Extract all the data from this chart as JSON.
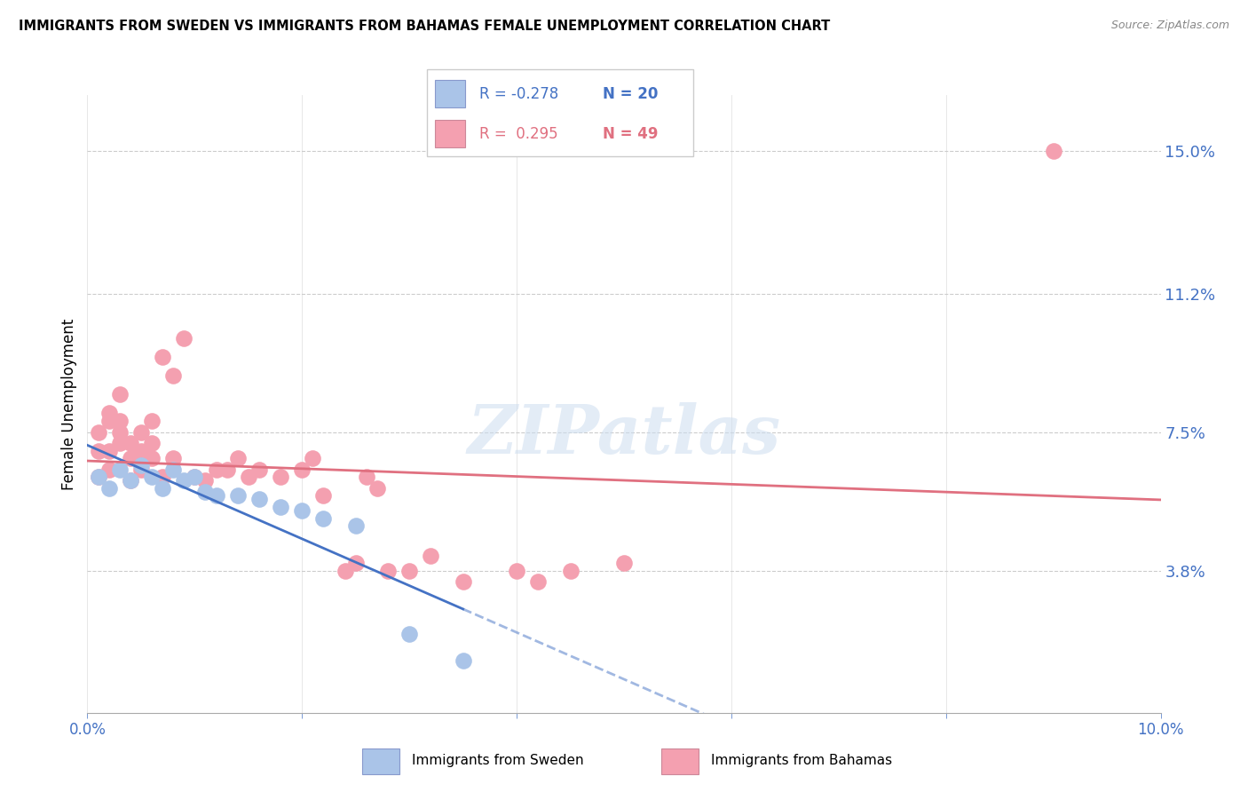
{
  "title": "IMMIGRANTS FROM SWEDEN VS IMMIGRANTS FROM BAHAMAS FEMALE UNEMPLOYMENT CORRELATION CHART",
  "source": "Source: ZipAtlas.com",
  "ylabel": "Female Unemployment",
  "ytick_labels": [
    "15.0%",
    "11.2%",
    "7.5%",
    "3.8%"
  ],
  "ytick_values": [
    0.15,
    0.112,
    0.075,
    0.038
  ],
  "xlim": [
    0.0,
    0.1
  ],
  "ylim": [
    0.0,
    0.165
  ],
  "watermark": "ZIPatlas",
  "legend_r1": "R = -0.278",
  "legend_n1": "N = 20",
  "legend_r2": "R =  0.295",
  "legend_n2": "N = 49",
  "label_sweden": "Immigrants from Sweden",
  "label_bahamas": "Immigrants from Bahamas",
  "color_sweden": "#aac4e8",
  "color_bahamas": "#f4a0b0",
  "color_sweden_line": "#4472c4",
  "color_bahamas_line": "#e07080",
  "color_axis_labels": "#4472c4",
  "sweden_x": [
    0.001,
    0.002,
    0.003,
    0.004,
    0.005,
    0.006,
    0.007,
    0.008,
    0.009,
    0.01,
    0.011,
    0.012,
    0.014,
    0.016,
    0.018,
    0.02,
    0.022,
    0.025,
    0.03,
    0.035
  ],
  "sweden_y": [
    0.063,
    0.06,
    0.065,
    0.062,
    0.066,
    0.063,
    0.06,
    0.065,
    0.062,
    0.063,
    0.059,
    0.058,
    0.058,
    0.057,
    0.055,
    0.054,
    0.052,
    0.05,
    0.021,
    0.014
  ],
  "bahamas_x": [
    0.001,
    0.001,
    0.001,
    0.002,
    0.002,
    0.002,
    0.002,
    0.003,
    0.003,
    0.003,
    0.003,
    0.004,
    0.004,
    0.004,
    0.005,
    0.005,
    0.005,
    0.006,
    0.006,
    0.006,
    0.007,
    0.007,
    0.008,
    0.008,
    0.009,
    0.01,
    0.011,
    0.012,
    0.013,
    0.014,
    0.015,
    0.016,
    0.018,
    0.02,
    0.021,
    0.022,
    0.024,
    0.025,
    0.026,
    0.027,
    0.028,
    0.03,
    0.032,
    0.035,
    0.04,
    0.042,
    0.045,
    0.05,
    0.09
  ],
  "bahamas_y": [
    0.063,
    0.07,
    0.075,
    0.065,
    0.07,
    0.078,
    0.08,
    0.072,
    0.075,
    0.078,
    0.085,
    0.062,
    0.068,
    0.072,
    0.065,
    0.07,
    0.075,
    0.068,
    0.072,
    0.078,
    0.095,
    0.063,
    0.09,
    0.068,
    0.1,
    0.063,
    0.062,
    0.065,
    0.065,
    0.068,
    0.063,
    0.065,
    0.063,
    0.065,
    0.068,
    0.058,
    0.038,
    0.04,
    0.063,
    0.06,
    0.038,
    0.038,
    0.042,
    0.035,
    0.038,
    0.035,
    0.038,
    0.04,
    0.15
  ]
}
